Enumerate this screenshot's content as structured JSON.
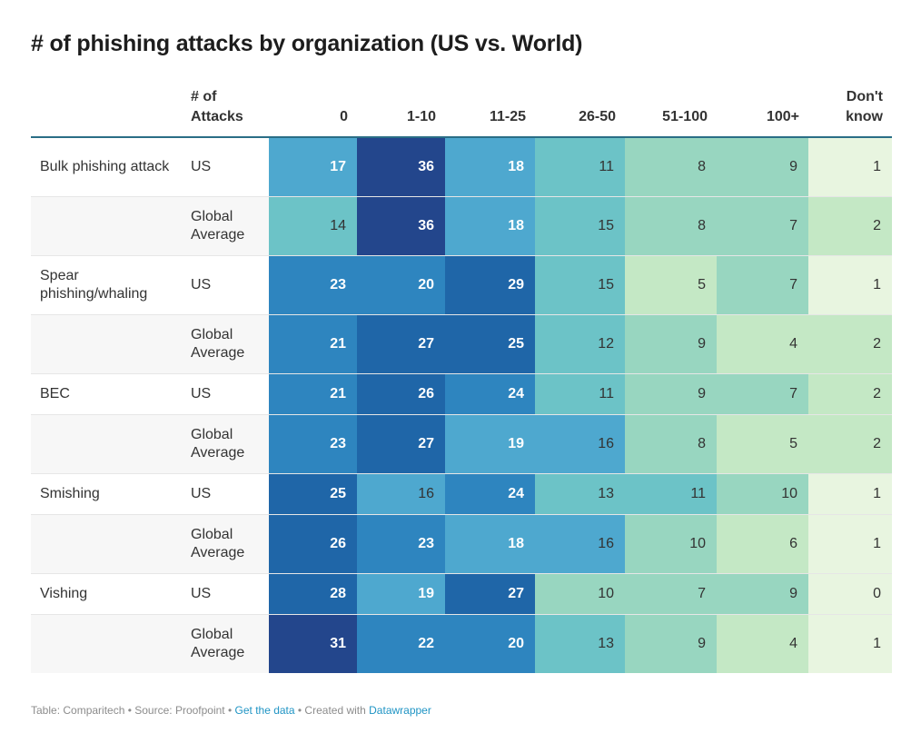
{
  "title": "# of phishing attacks by organization (US vs. World)",
  "header": {
    "type_label": "",
    "category_label_line1": "# of",
    "category_label_line2": "Attacks",
    "columns": [
      "0",
      "1-10",
      "11-25",
      "26-50",
      "51-100",
      "100+",
      "Don't know"
    ]
  },
  "chart_data": {
    "type": "table",
    "title": "# of phishing attacks by organization (US vs. World)",
    "columns": [
      "0",
      "1-10",
      "11-25",
      "26-50",
      "51-100",
      "100+",
      "Don't know"
    ],
    "rows": [
      {
        "type": "Bulk phishing attack",
        "category": "US",
        "values": [
          17,
          36,
          18,
          11,
          8,
          9,
          1
        ]
      },
      {
        "type": "",
        "category": "Global Average",
        "values": [
          14,
          36,
          18,
          15,
          8,
          7,
          2
        ]
      },
      {
        "type": "Spear phishing/whaling",
        "category": "US",
        "values": [
          23,
          20,
          29,
          15,
          5,
          7,
          1
        ]
      },
      {
        "type": "",
        "category": "Global Average",
        "values": [
          21,
          27,
          25,
          12,
          9,
          4,
          2
        ]
      },
      {
        "type": "BEC",
        "category": "US",
        "values": [
          21,
          26,
          24,
          11,
          9,
          7,
          2
        ]
      },
      {
        "type": "",
        "category": "Global Average",
        "values": [
          23,
          27,
          19,
          16,
          8,
          5,
          2
        ]
      },
      {
        "type": "Smishing",
        "category": "US",
        "values": [
          25,
          16,
          24,
          13,
          11,
          10,
          1
        ]
      },
      {
        "type": "",
        "category": "Global Average",
        "values": [
          26,
          23,
          18,
          16,
          10,
          6,
          1
        ]
      },
      {
        "type": "Vishing",
        "category": "US",
        "values": [
          28,
          19,
          27,
          10,
          7,
          9,
          0
        ]
      },
      {
        "type": "",
        "category": "Global Average",
        "values": [
          31,
          22,
          20,
          13,
          9,
          4,
          1
        ]
      }
    ],
    "color_scale": [
      "#e8f5e0",
      "#c4e8c5",
      "#98d6c0",
      "#6cc3c7",
      "#4ea8cf",
      "#2e85bf",
      "#1f66a8",
      "#23468c"
    ]
  },
  "footer": {
    "prefix": "Table: Comparitech • Source: Proofpoint • ",
    "get_data": "Get the data",
    "middle": " • Created with ",
    "datawrapper": "Datawrapper"
  }
}
